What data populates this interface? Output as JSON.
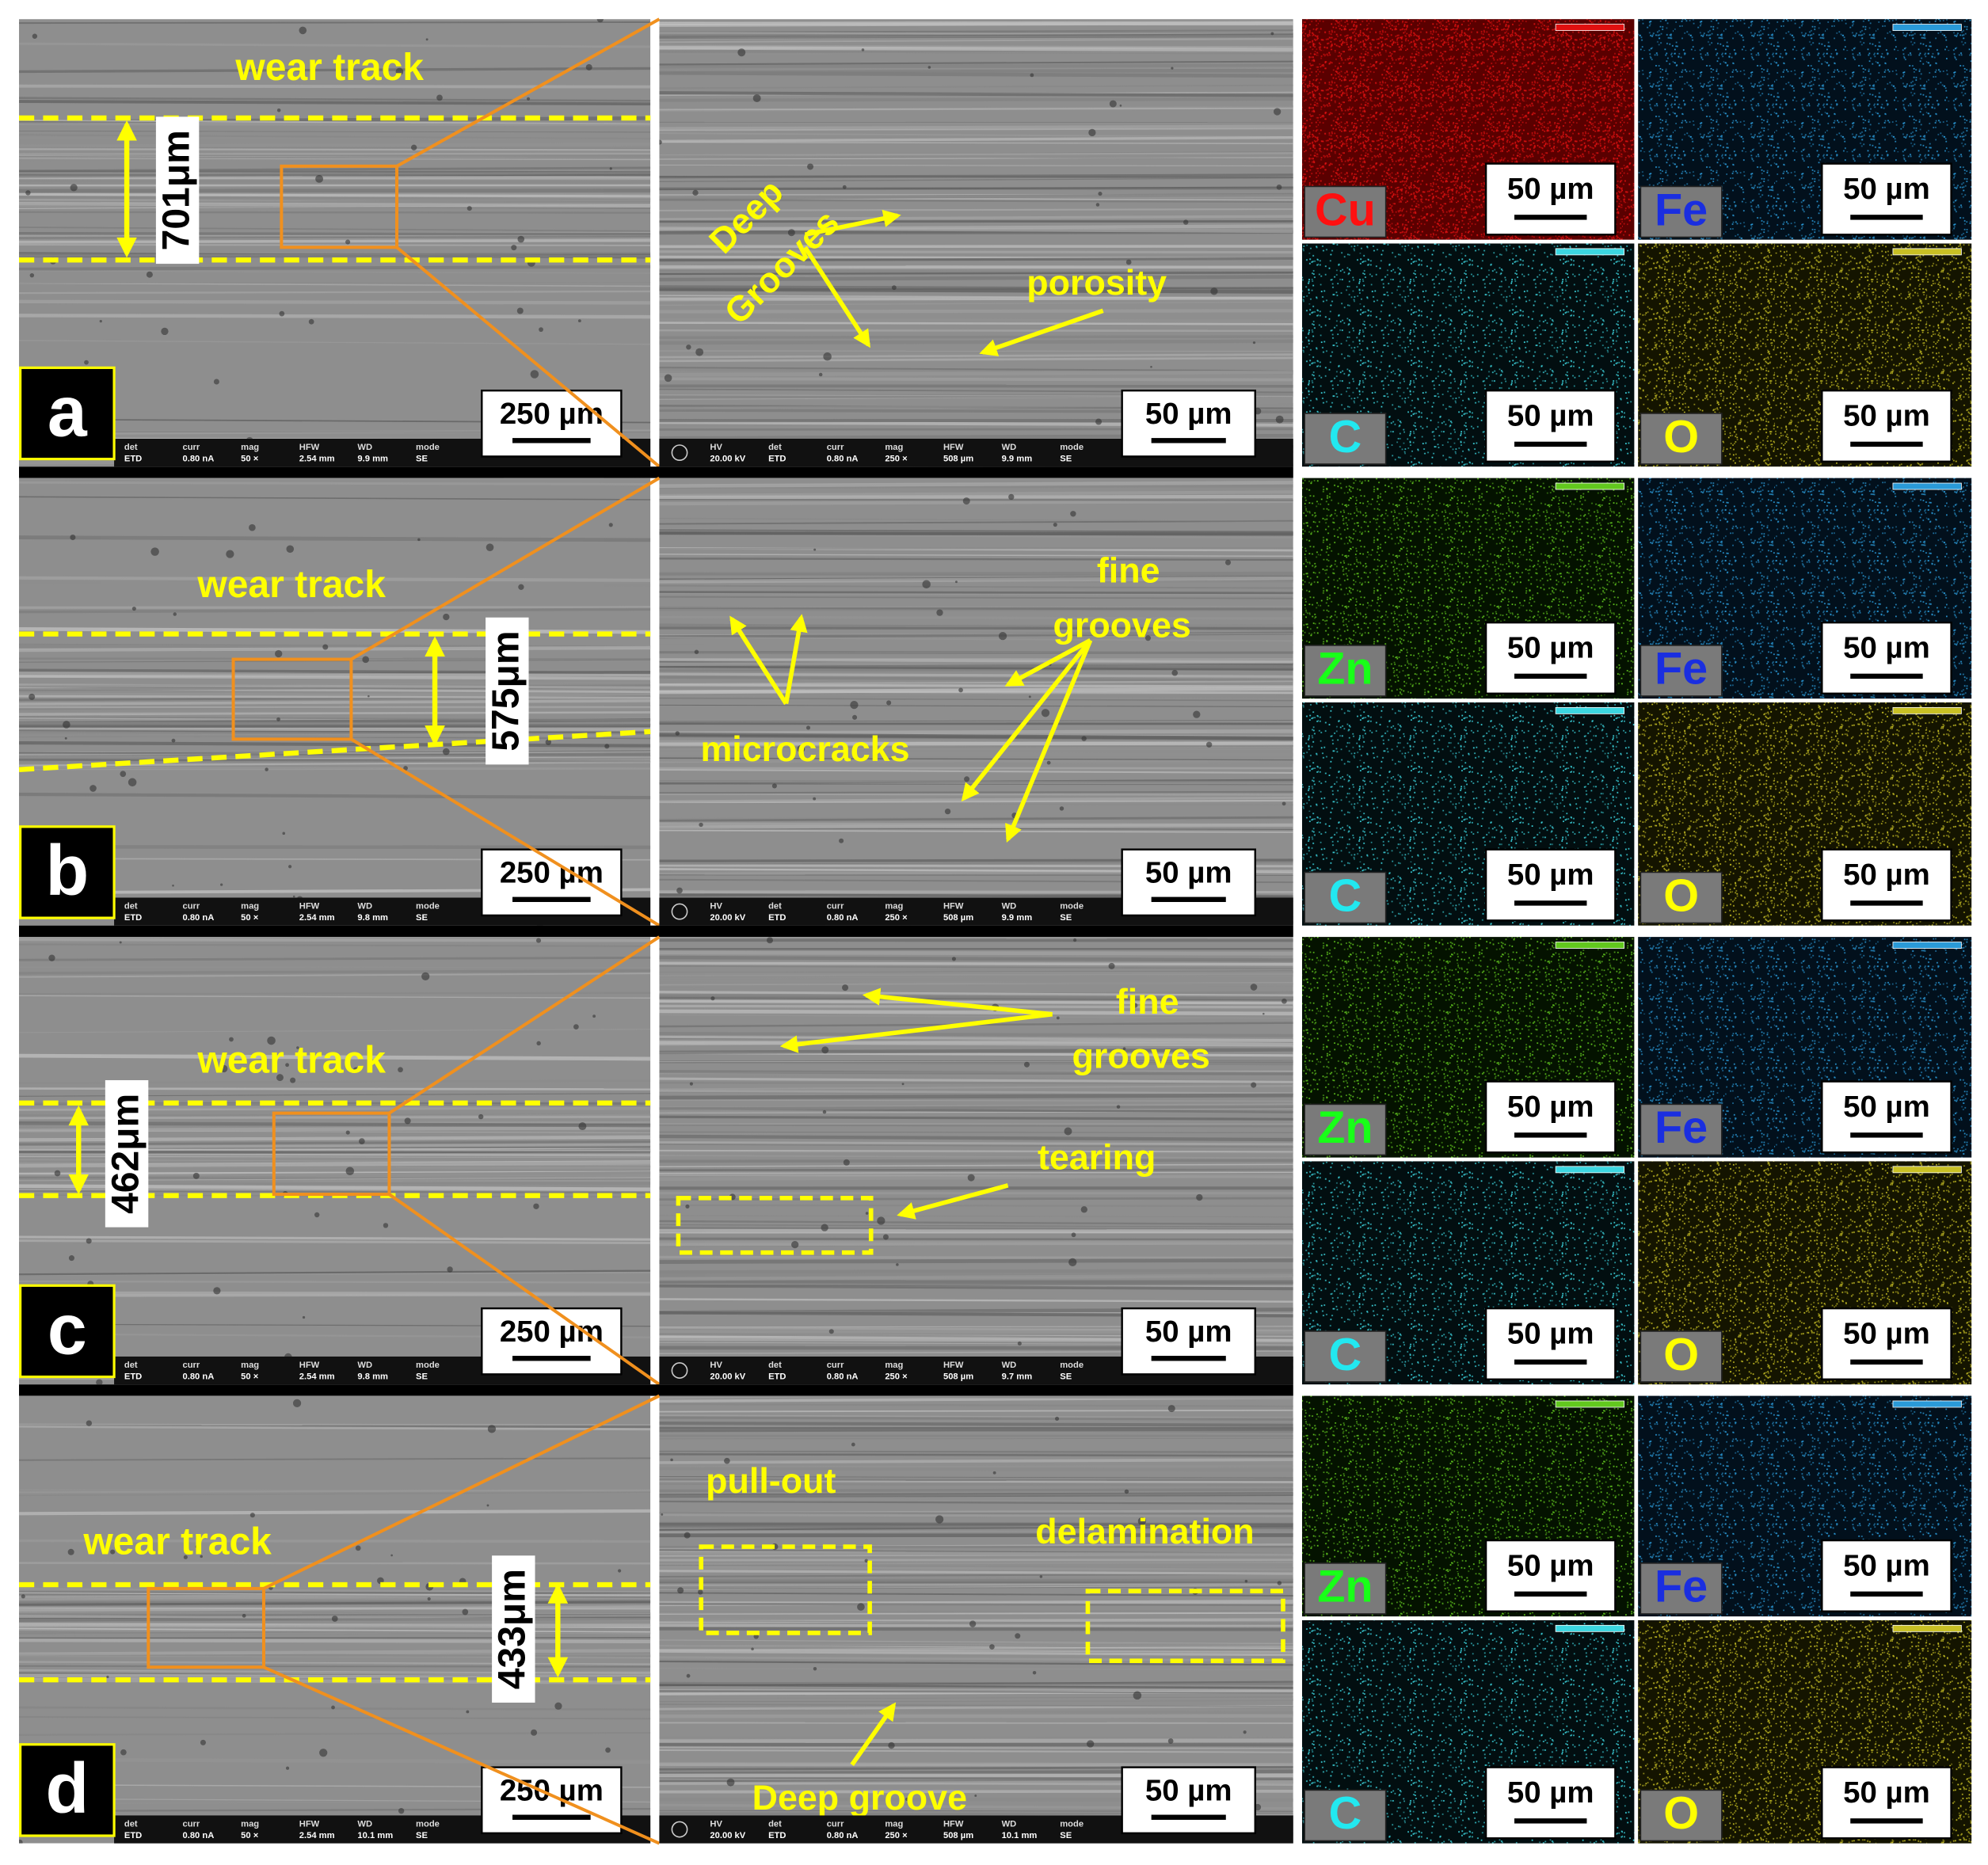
{
  "panels": [
    {
      "label": "a",
      "overview": {
        "annotation": "wear track",
        "track_width": "701μm",
        "scale_bar": "250 µm",
        "info": [
          [
            "det",
            "ETD"
          ],
          [
            "curr",
            "0.80 nA"
          ],
          [
            "mag",
            "50 ×"
          ],
          [
            "HFW",
            "2.54 mm"
          ],
          [
            "WD",
            "9.9 mm"
          ],
          [
            "mode",
            "SE"
          ]
        ]
      },
      "detail": {
        "annotations": [
          [
            "Deep",
            "Grooves"
          ],
          [
            "porosity"
          ]
        ],
        "scale_bar": "50 µm",
        "info": [
          [
            "HV",
            "20.00 kV"
          ],
          [
            "det",
            "ETD"
          ],
          [
            "curr",
            "0.80 nA"
          ],
          [
            "mag",
            "250 ×"
          ],
          [
            "HFW",
            "508 µm"
          ],
          [
            "WD",
            "9.9 mm"
          ],
          [
            "mode",
            "SE"
          ]
        ]
      },
      "maps": [
        {
          "element": "Cu",
          "scale_bar": "50 µm"
        },
        {
          "element": "Fe",
          "scale_bar": "50 µm"
        },
        {
          "element": "C",
          "scale_bar": "50 µm"
        },
        {
          "element": "O",
          "scale_bar": "50 µm"
        }
      ]
    },
    {
      "label": "b",
      "overview": {
        "annotation": "wear track",
        "track_width": "575μm",
        "scale_bar": "250 µm",
        "info": [
          [
            "det",
            "ETD"
          ],
          [
            "curr",
            "0.80 nA"
          ],
          [
            "mag",
            "50 ×"
          ],
          [
            "HFW",
            "2.54 mm"
          ],
          [
            "WD",
            "9.8 mm"
          ],
          [
            "mode",
            "SE"
          ]
        ]
      },
      "detail": {
        "annotations": [
          [
            "fine",
            "grooves"
          ],
          [
            "microcracks"
          ]
        ],
        "scale_bar": "50 µm",
        "info": [
          [
            "HV",
            "20.00 kV"
          ],
          [
            "det",
            "ETD"
          ],
          [
            "curr",
            "0.80 nA"
          ],
          [
            "mag",
            "250 ×"
          ],
          [
            "HFW",
            "508 µm"
          ],
          [
            "WD",
            "9.9 mm"
          ],
          [
            "mode",
            "SE"
          ]
        ]
      },
      "maps": [
        {
          "element": "Zn",
          "scale_bar": "50 µm"
        },
        {
          "element": "Fe",
          "scale_bar": "50 µm"
        },
        {
          "element": "C",
          "scale_bar": "50 µm"
        },
        {
          "element": "O",
          "scale_bar": "50 µm"
        }
      ]
    },
    {
      "label": "c",
      "overview": {
        "annotation": "wear track",
        "track_width": "462μm",
        "scale_bar": "250 µm",
        "info": [
          [
            "det",
            "ETD"
          ],
          [
            "curr",
            "0.80 nA"
          ],
          [
            "mag",
            "50 ×"
          ],
          [
            "HFW",
            "2.54 mm"
          ],
          [
            "WD",
            "9.8 mm"
          ],
          [
            "mode",
            "SE"
          ]
        ]
      },
      "detail": {
        "annotations": [
          [
            "fine",
            "grooves"
          ],
          [
            "tearing"
          ]
        ],
        "scale_bar": "50 µm",
        "info": [
          [
            "HV",
            "20.00 kV"
          ],
          [
            "det",
            "ETD"
          ],
          [
            "curr",
            "0.80 nA"
          ],
          [
            "mag",
            "250 ×"
          ],
          [
            "HFW",
            "508 µm"
          ],
          [
            "WD",
            "9.7 mm"
          ],
          [
            "mode",
            "SE"
          ]
        ]
      },
      "maps": [
        {
          "element": "Zn",
          "scale_bar": "50 µm"
        },
        {
          "element": "Fe",
          "scale_bar": "50 µm"
        },
        {
          "element": "C",
          "scale_bar": "50 µm"
        },
        {
          "element": "O",
          "scale_bar": "50 µm"
        }
      ]
    },
    {
      "label": "d",
      "overview": {
        "annotation": "wear track",
        "track_width": "433μm",
        "scale_bar": "250 µm",
        "info": [
          [
            "det",
            "ETD"
          ],
          [
            "curr",
            "0.80 nA"
          ],
          [
            "mag",
            "50 ×"
          ],
          [
            "HFW",
            "2.54 mm"
          ],
          [
            "WD",
            "10.1 mm"
          ],
          [
            "mode",
            "SE"
          ]
        ]
      },
      "detail": {
        "annotations": [
          [
            "pull-out"
          ],
          [
            "delamination"
          ],
          [
            "Deep groove"
          ]
        ],
        "scale_bar": "50 µm",
        "info": [
          [
            "HV",
            "20.00 kV"
          ],
          [
            "det",
            "ETD"
          ],
          [
            "curr",
            "0.80 nA"
          ],
          [
            "mag",
            "250 ×"
          ],
          [
            "HFW",
            "508 µm"
          ],
          [
            "WD",
            "10.1 mm"
          ],
          [
            "mode",
            "SE"
          ]
        ]
      },
      "maps": [
        {
          "element": "Zn",
          "scale_bar": "50 µm"
        },
        {
          "element": "Fe",
          "scale_bar": "50 µm"
        },
        {
          "element": "C",
          "scale_bar": "50 µm"
        },
        {
          "element": "O",
          "scale_bar": "50 µm"
        }
      ]
    }
  ]
}
